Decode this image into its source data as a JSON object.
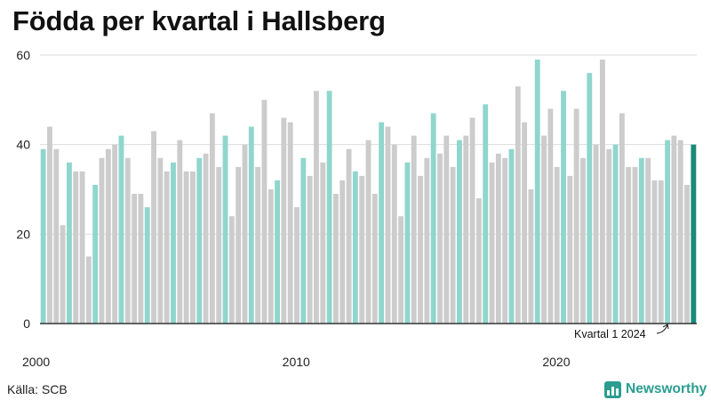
{
  "title": "Födda per kvartal i Hallsberg",
  "source": "Källa: SCB",
  "brand": {
    "name": "Newsworthy",
    "icon": "bar-chart-logo-icon"
  },
  "colors": {
    "q1": "#8fd6cd",
    "other": "#cccccc",
    "latest": "#1a8a7a",
    "grid": "#dddddd",
    "axis": "#111111"
  },
  "chart_data": {
    "type": "bar",
    "x_start": {
      "year": 2000,
      "quarter": 1
    },
    "values": [
      39,
      44,
      39,
      22,
      36,
      34,
      34,
      15,
      31,
      37,
      39,
      40,
      42,
      37,
      29,
      29,
      26,
      43,
      37,
      34,
      36,
      41,
      34,
      34,
      37,
      38,
      47,
      35,
      42,
      24,
      35,
      40,
      44,
      35,
      50,
      30,
      32,
      46,
      45,
      26,
      37,
      33,
      52,
      36,
      52,
      29,
      32,
      39,
      34,
      33,
      41,
      29,
      45,
      44,
      40,
      24,
      36,
      42,
      33,
      37,
      47,
      38,
      42,
      35,
      41,
      42,
      46,
      28,
      49,
      36,
      38,
      37,
      39,
      53,
      45,
      30,
      59,
      42,
      48,
      35,
      52,
      33,
      48,
      37,
      56,
      40,
      59,
      39,
      40,
      47,
      35,
      35,
      37,
      37,
      32,
      32,
      41,
      42,
      41,
      31,
      40
    ],
    "ylim": [
      0,
      60
    ],
    "yticks": [
      0,
      20,
      40,
      60
    ],
    "xticks": [
      "2000",
      "2010",
      "2020"
    ],
    "grid": true,
    "annotation": "Kvartal 1 2024"
  }
}
